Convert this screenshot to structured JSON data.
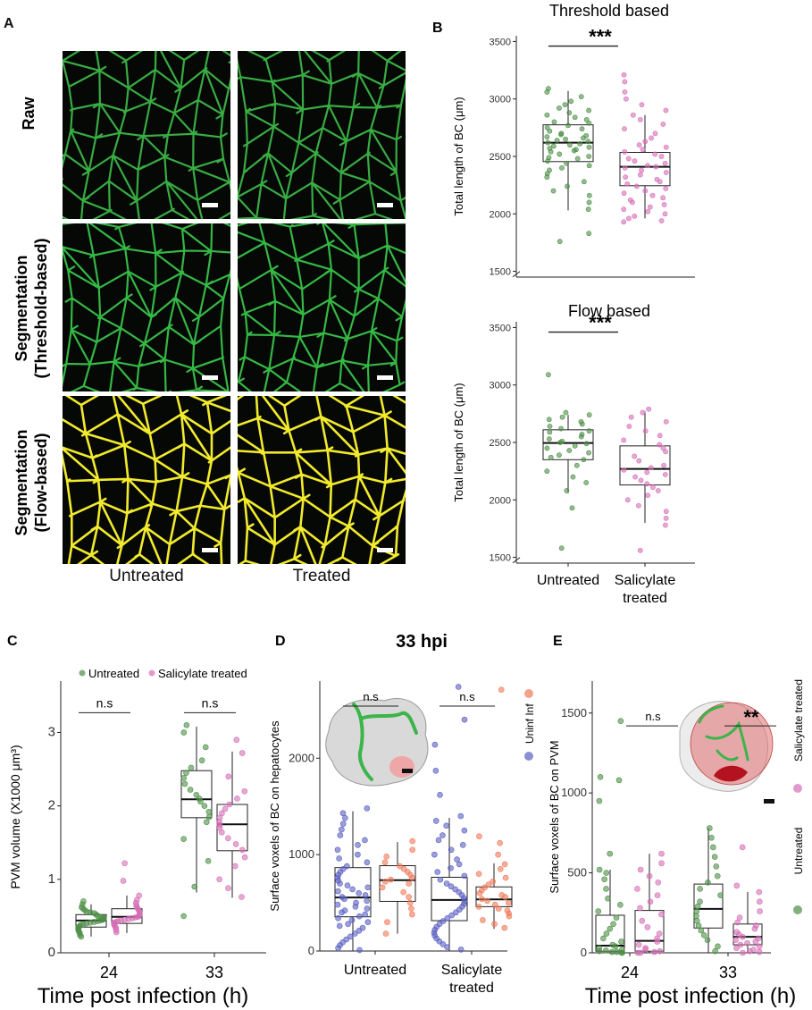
{
  "panel_a": {
    "label": "A",
    "rows": [
      "Raw",
      "Segmentation\n(Threshold-based)",
      "Segmentation\n(Flow-based)"
    ],
    "columns": [
      "Untreated",
      "Treated"
    ],
    "colors": {
      "raw": "#3fbf4a",
      "threshold": "#35b845",
      "flow": "#f2ea2c"
    }
  },
  "panel_d": {
    "title": "33 hpi",
    "legend": [
      "Uninf",
      "Inf"
    ],
    "legend_colors": [
      "#5a5fc2",
      "#f07a5a"
    ]
  },
  "panel_e": {
    "legend": [
      "Untreated",
      "Salicylate treated"
    ],
    "legend_colors": [
      "#4c8f46",
      "#d66fb6"
    ]
  },
  "chart_data": [
    {
      "id": "B-top",
      "panel_label": "B",
      "type": "box",
      "title": "Threshold based",
      "xlabel": "",
      "ylabel": "Total length of BC (μm)",
      "categories": [
        "Untreated",
        "Salicylate\ntreated"
      ],
      "category_colors": [
        "#4c8f46",
        "#d66fb6"
      ],
      "ylim": [
        1450,
        3550
      ],
      "yticks": [
        1500,
        2000,
        2500,
        3000,
        3500
      ],
      "axis_break": true,
      "boxes": [
        {
          "q1": 2455,
          "median": 2620,
          "q3": 2775,
          "whisker_low": 2030,
          "whisker_high": 3070
        },
        {
          "q1": 2245,
          "median": 2410,
          "q3": 2535,
          "whisker_low": 1960,
          "whisker_high": 2860
        }
      ],
      "points": [
        [
          3090,
          3060,
          3020,
          2980,
          2950,
          2920,
          2900,
          2880,
          2860,
          2840,
          2820,
          2800,
          2790,
          2770,
          2750,
          2740,
          2720,
          2700,
          2690,
          2680,
          2670,
          2660,
          2650,
          2640,
          2630,
          2620,
          2610,
          2600,
          2590,
          2580,
          2570,
          2560,
          2550,
          2540,
          2520,
          2500,
          2490,
          2480,
          2460,
          2440,
          2420,
          2400,
          2380,
          2350,
          2320,
          2280,
          2240,
          2200,
          2160,
          2100,
          2040,
          1830,
          1760
        ],
        [
          3210,
          3150,
          3060,
          3000,
          2950,
          2900,
          2860,
          2820,
          2780,
          2740,
          2700,
          2660,
          2630,
          2600,
          2580,
          2560,
          2540,
          2520,
          2500,
          2480,
          2460,
          2440,
          2420,
          2410,
          2400,
          2380,
          2360,
          2340,
          2320,
          2300,
          2280,
          2260,
          2240,
          2220,
          2200,
          2180,
          2160,
          2140,
          2120,
          2100,
          2080,
          2060,
          2040,
          2020,
          2000,
          1980,
          1960,
          1940,
          1930
        ]
      ],
      "annotations": [
        {
          "text": "***",
          "between": [
            0,
            1
          ]
        }
      ]
    },
    {
      "id": "B-bottom",
      "type": "box",
      "title": "Flow based",
      "ylabel": "Total length of BC (μm)",
      "categories": [
        "Untreated",
        "Salicylate\ntreated"
      ],
      "category_colors": [
        "#4c8f46",
        "#d66fb6"
      ],
      "ylim": [
        1450,
        3550
      ],
      "yticks": [
        1500,
        2000,
        2500,
        3000,
        3500
      ],
      "axis_break": true,
      "boxes": [
        {
          "q1": 2350,
          "median": 2495,
          "q3": 2610,
          "whisker_low": 2060,
          "whisker_high": 2740
        },
        {
          "q1": 2130,
          "median": 2270,
          "q3": 2470,
          "whisker_low": 1800,
          "whisker_high": 2770
        }
      ],
      "points": [
        [
          3090,
          2760,
          2740,
          2720,
          2700,
          2680,
          2660,
          2640,
          2620,
          2600,
          2590,
          2570,
          2550,
          2530,
          2510,
          2500,
          2490,
          2470,
          2450,
          2430,
          2410,
          2390,
          2370,
          2350,
          2300,
          2250,
          2200,
          2150,
          2080,
          1930,
          1580
        ],
        [
          2790,
          2760,
          2720,
          2680,
          2640,
          2600,
          2560,
          2520,
          2480,
          2450,
          2420,
          2380,
          2340,
          2300,
          2280,
          2260,
          2240,
          2220,
          2200,
          2170,
          2140,
          2110,
          2080,
          2040,
          2000,
          1950,
          1900,
          1840,
          1780,
          1560
        ]
      ],
      "annotations": [
        {
          "text": "***",
          "between": [
            0,
            1
          ]
        }
      ]
    },
    {
      "id": "C",
      "panel_label": "C",
      "type": "box",
      "xlabel": "Time post infection (h)",
      "ylabel": "PVM volume (X1000 μm³)",
      "categories": [
        "24",
        "33"
      ],
      "series": [
        {
          "name": "Untreated",
          "color": "#4c8f46"
        },
        {
          "name": "Salicylate treated",
          "color": "#d66fb6"
        }
      ],
      "ylim": [
        0,
        3.7
      ],
      "yticks": [
        0,
        1,
        2,
        3
      ],
      "boxes": [
        [
          {
            "q1": 0.35,
            "median": 0.44,
            "q3": 0.52,
            "whisker_low": 0.22,
            "whisker_high": 0.66
          },
          {
            "q1": 0.4,
            "median": 0.49,
            "q3": 0.6,
            "whisker_low": 0.27,
            "whisker_high": 0.78
          }
        ],
        [
          {
            "q1": 1.84,
            "median": 2.09,
            "q3": 2.48,
            "whisker_low": 0.82,
            "whisker_high": 3.08
          },
          {
            "q1": 1.39,
            "median": 1.75,
            "q3": 2.02,
            "whisker_low": 0.75,
            "whisker_high": 2.74
          }
        ]
      ],
      "points": [
        [
          [
            0.7,
            0.66,
            0.62,
            0.6,
            0.58,
            0.56,
            0.55,
            0.54,
            0.52,
            0.5,
            0.49,
            0.48,
            0.47,
            0.46,
            0.45,
            0.44,
            0.43,
            0.42,
            0.41,
            0.4,
            0.39,
            0.38,
            0.36,
            0.35,
            0.33,
            0.31,
            0.29,
            0.27,
            0.24,
            0.22
          ],
          [
            1.22,
            0.98,
            0.78,
            0.72,
            0.68,
            0.65,
            0.62,
            0.6,
            0.58,
            0.56,
            0.54,
            0.52,
            0.5,
            0.49,
            0.48,
            0.47,
            0.46,
            0.45,
            0.44,
            0.43,
            0.42,
            0.41,
            0.4,
            0.38,
            0.36,
            0.34,
            0.31,
            0.28
          ]
        ],
        [
          [
            3.1,
            3.0,
            2.8,
            2.62,
            2.52,
            2.45,
            2.38,
            2.3,
            2.22,
            2.15,
            2.1,
            2.06,
            2.0,
            1.92,
            1.85,
            1.78,
            1.55,
            1.25,
            0.9,
            0.5
          ],
          [
            2.9,
            2.72,
            2.4,
            2.2,
            2.1,
            2.02,
            1.96,
            1.9,
            1.84,
            1.78,
            1.74,
            1.7,
            1.64,
            1.56,
            1.48,
            1.4,
            1.3,
            1.18,
            1.0,
            0.88,
            0.76
          ]
        ]
      ],
      "annotations": [
        {
          "text": "n.s",
          "group": 0
        },
        {
          "text": "n.s",
          "group": 1
        }
      ]
    },
    {
      "id": "D",
      "panel_label": "D",
      "type": "box",
      "title": "33 hpi",
      "ylabel": "Surface voxels of BC on hepatocytes",
      "categories": [
        "Untreated",
        "Salicylate\ntreated"
      ],
      "series": [
        {
          "name": "Uninf",
          "color": "#5a5fc2"
        },
        {
          "name": "Inf",
          "color": "#f07a5a"
        }
      ],
      "ylim": [
        0,
        2800
      ],
      "yticks": [
        0,
        1000,
        2000
      ],
      "boxes": [
        [
          {
            "q1": 355,
            "median": 555,
            "q3": 865,
            "whisker_low": 0,
            "whisker_high": 1450
          },
          {
            "q1": 515,
            "median": 735,
            "q3": 885,
            "whisker_low": 180,
            "whisker_high": 1130
          }
        ],
        [
          {
            "q1": 315,
            "median": 530,
            "q3": 765,
            "whisker_low": 0,
            "whisker_high": 1380
          },
          {
            "q1": 460,
            "median": 535,
            "q3": 665,
            "whisker_low": 230,
            "whisker_high": 910
          }
        ]
      ],
      "points": [
        [
          [
            1480,
            1430,
            1380,
            1320,
            1260,
            1200,
            1150,
            1100,
            1050,
            1000,
            960,
            920,
            880,
            850,
            820,
            790,
            760,
            730,
            700,
            680,
            660,
            640,
            620,
            600,
            580,
            560,
            540,
            520,
            500,
            480,
            460,
            440,
            420,
            400,
            380,
            360,
            340,
            320,
            300,
            280,
            260,
            240,
            210,
            180,
            150,
            120,
            90,
            60,
            30,
            10
          ],
          [
            1140,
            1050,
            980,
            920,
            880,
            850,
            820,
            790,
            760,
            740,
            720,
            700,
            660,
            610,
            560,
            500,
            440,
            380,
            300,
            180
          ]
        ],
        [
          [
            2740,
            2400,
            2140,
            1870,
            1620,
            1400,
            1350,
            1300,
            1250,
            1200,
            1150,
            1100,
            1050,
            1000,
            950,
            900,
            860,
            820,
            780,
            740,
            700,
            670,
            640,
            610,
            580,
            550,
            520,
            490,
            460,
            430,
            400,
            370,
            340,
            310,
            280,
            250,
            220,
            190,
            160,
            130,
            100,
            70,
            40,
            15
          ],
          [
            2710,
            1190,
            1120,
            1000,
            900,
            850,
            800,
            760,
            720,
            690,
            660,
            630,
            600,
            580,
            560,
            540,
            520,
            500,
            480,
            460,
            440,
            420,
            390,
            360,
            320,
            280,
            240
          ]
        ]
      ],
      "annotations": [
        {
          "text": "n.s",
          "group": 0
        },
        {
          "text": "n.s",
          "group": 1
        }
      ]
    },
    {
      "id": "E",
      "panel_label": "E",
      "type": "box",
      "xlabel": "Time post infection (h)",
      "ylabel": "Surface voxels of BC on PVM",
      "categories": [
        "24",
        "33"
      ],
      "series": [
        {
          "name": "Untreated",
          "color": "#4c8f46"
        },
        {
          "name": "Salicylate treated",
          "color": "#d66fb6"
        }
      ],
      "ylim": [
        0,
        1700
      ],
      "yticks": [
        0,
        500,
        1000,
        1500
      ],
      "boxes": [
        [
          {
            "q1": 10,
            "median": 45,
            "q3": 235,
            "whisker_low": 0,
            "whisker_high": 520
          },
          {
            "q1": 10,
            "median": 75,
            "q3": 265,
            "whisker_low": 0,
            "whisker_high": 620
          }
        ],
        [
          {
            "q1": 155,
            "median": 275,
            "q3": 430,
            "whisker_low": 0,
            "whisker_high": 780
          },
          {
            "q1": 50,
            "median": 100,
            "q3": 180,
            "whisker_low": 0,
            "whisker_high": 380
          }
        ]
      ],
      "points": [
        [
          [
            1450,
            1100,
            1080,
            950,
            620,
            520,
            500,
            460,
            400,
            340,
            300,
            260,
            220,
            180,
            150,
            120,
            90,
            70,
            50,
            40,
            30,
            20,
            15,
            10,
            5,
            5,
            0,
            0
          ],
          [
            620,
            560,
            520,
            480,
            440,
            400,
            360,
            320,
            280,
            240,
            200,
            160,
            120,
            90,
            70,
            50,
            30,
            20,
            10,
            5,
            0,
            0
          ]
        ],
        [
          [
            780,
            720,
            660,
            600,
            540,
            480,
            440,
            400,
            360,
            320,
            290,
            260,
            230,
            200,
            170,
            140,
            110,
            80,
            40,
            10
          ],
          [
            660,
            420,
            380,
            320,
            260,
            220,
            190,
            170,
            150,
            130,
            115,
            100,
            90,
            80,
            70,
            60,
            50,
            40,
            30,
            20,
            10,
            5,
            0
          ]
        ]
      ],
      "annotations": [
        {
          "text": "n.s",
          "group": 0
        },
        {
          "text": "**",
          "group": 1
        }
      ]
    }
  ]
}
